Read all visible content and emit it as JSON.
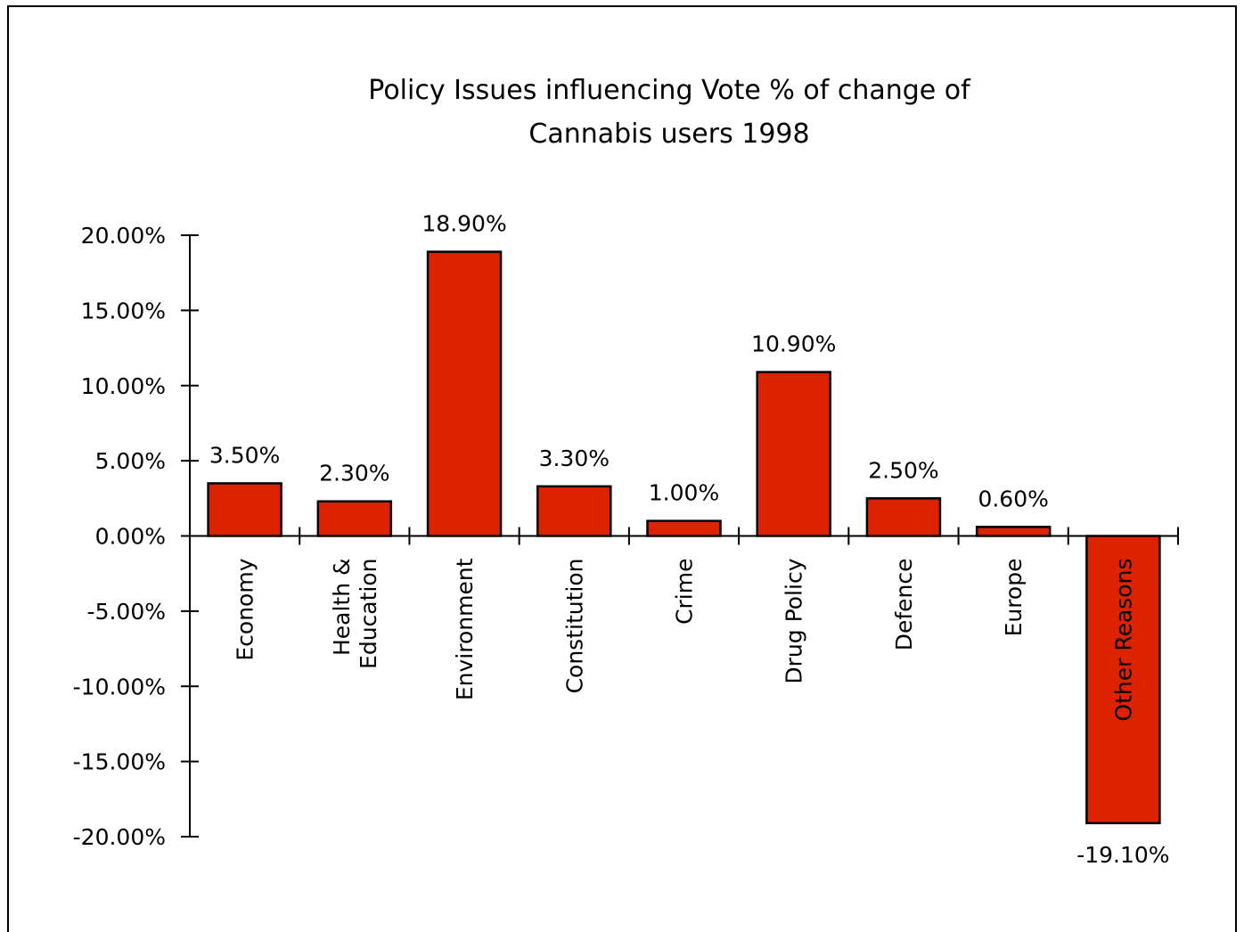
{
  "chart_data": {
    "type": "bar",
    "title_lines": [
      "Policy  Issues  influencing  Vote  %  of  change  of",
      "Cannabis  users  1998"
    ],
    "xlabel": "",
    "ylabel": "",
    "ylim": [
      -20,
      20
    ],
    "y_ticks": [
      20,
      15,
      10,
      5,
      0,
      -5,
      -10,
      -15,
      -20
    ],
    "y_tick_labels": [
      "20.00%",
      "15.00%",
      "10.00%",
      "5.00%",
      "0.00%",
      "-5.00%",
      "-10.00%",
      "-15.00%",
      "-20.00%"
    ],
    "categories": [
      {
        "label": [
          "Economy"
        ],
        "value": 3.5,
        "data_label": "3.50%"
      },
      {
        "label": [
          "Health  &",
          "Education"
        ],
        "value": 2.3,
        "data_label": "2.30%"
      },
      {
        "label": [
          "Environment"
        ],
        "value": 18.9,
        "data_label": "18.90%"
      },
      {
        "label": [
          "Constitution"
        ],
        "value": 3.3,
        "data_label": "3.30%"
      },
      {
        "label": [
          "Crime"
        ],
        "value": 1.0,
        "data_label": "1.00%"
      },
      {
        "label": [
          "Drug  Policy"
        ],
        "value": 10.9,
        "data_label": "10.90%"
      },
      {
        "label": [
          "Defence"
        ],
        "value": 2.5,
        "data_label": "2.50%"
      },
      {
        "label": [
          "Europe"
        ],
        "value": 0.6,
        "data_label": "0.60%"
      },
      {
        "label": [
          "Other Reasons"
        ],
        "value": -19.1,
        "data_label": "-19.10%"
      }
    ],
    "grid": false,
    "legend": "none",
    "colors": {
      "bar_fill": "#dd2200",
      "bar_stroke": "#000000",
      "axis": "#000000"
    }
  }
}
